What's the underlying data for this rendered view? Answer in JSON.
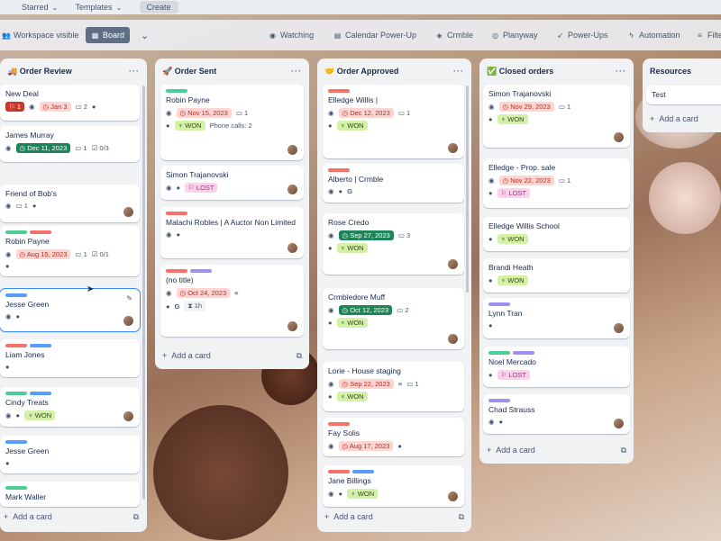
{
  "topbar": {
    "starred": "Starred",
    "templates": "Templates",
    "create": "Create"
  },
  "boardbar": {
    "workspace": "Workspace visible",
    "board": "Board",
    "watching": "Watching",
    "calendar": "Calendar Power-Up",
    "crmble": "Crmble",
    "planyway": "Planyway",
    "powerups": "Power-Ups",
    "automation": "Automation",
    "filters": "Filte"
  },
  "lists": [
    {
      "title": "Order Review",
      "icon": "🚚",
      "add": "Add a card"
    },
    {
      "title": "Order Sent",
      "icon": "🚀",
      "add": "Add a card"
    },
    {
      "title": "Order Approved",
      "icon": "🤝",
      "add": "Add a card"
    },
    {
      "title": "Closed orders",
      "icon": "✅",
      "add": "Add a card"
    },
    {
      "title": "Resources",
      "icon": "",
      "add": "Add a card"
    }
  ],
  "cards": {
    "l0": [
      {
        "title": "New Deal",
        "count": "1",
        "date": "Jan 3",
        "comments": "2"
      },
      {
        "title": "James Murray",
        "date": "Dec 11, 2023",
        "comments": "1",
        "check": "0/3"
      },
      {
        "title": "Friend of Bob's",
        "comments": "1"
      },
      {
        "title": "Robin Payne",
        "date": "Aug 15, 2023",
        "comments": "1",
        "check": "0/1"
      },
      {
        "title": "Jesse Green"
      },
      {
        "title": "Liam Jones"
      },
      {
        "title": "Cindy Treats",
        "won": "WON"
      },
      {
        "title": "Jesse Green"
      },
      {
        "title": "Mark Waller"
      }
    ],
    "l1": [
      {
        "title": "Robin Payne",
        "date": "Nov 15, 2023",
        "comments": "1",
        "won": "WON",
        "calls": "Phone calls: 2"
      },
      {
        "title": "Simon Trajanovski",
        "lost": "LOST"
      },
      {
        "title": "Malachi Robles | A Auctor Non Limited"
      },
      {
        "title": "(no title)",
        "date": "Oct 24, 2023",
        "time": "1h"
      }
    ],
    "l2": [
      {
        "title": "Elledge Willis |",
        "date": "Dec 12, 2023",
        "comments": "1",
        "won": "WON"
      },
      {
        "title": "Alberto | Crmble"
      },
      {
        "title": "Rose Credo",
        "date": "Sep 27, 2023",
        "comments": "3",
        "won": "WON"
      },
      {
        "title": "Crmbledore Muff",
        "date": "Oct 12, 2023",
        "comments": "2",
        "won": "WON"
      },
      {
        "title": "Lorie - House staging",
        "date": "Sep 22, 2023",
        "comments": "1",
        "won": "WON"
      },
      {
        "title": "Fay Solis",
        "date": "Aug 17, 2023"
      },
      {
        "title": "Jane Billings",
        "won": "WON"
      }
    ],
    "l3": [
      {
        "title": "Simon Trajanovski",
        "date": "Nov 29, 2023",
        "comments": "1",
        "won": "WON"
      },
      {
        "title": "Elledge - Prop. sale",
        "date": "Nov 22, 2023",
        "comments": "1",
        "lost": "LOST"
      },
      {
        "title": "Elledge Willis School",
        "won": "WON"
      },
      {
        "title": "Brandi Heath",
        "won": "WON"
      },
      {
        "title": "Lynn Tran"
      },
      {
        "title": "Noel Mercado",
        "lost": "LOST"
      },
      {
        "title": "Chad Strauss"
      }
    ],
    "l4": [
      {
        "title": "Test"
      }
    ]
  },
  "colors": {
    "green": "#4bce97",
    "red": "#f87168",
    "blue": "#579dff",
    "purple": "#9f8fef",
    "teal": "#1f845a"
  }
}
